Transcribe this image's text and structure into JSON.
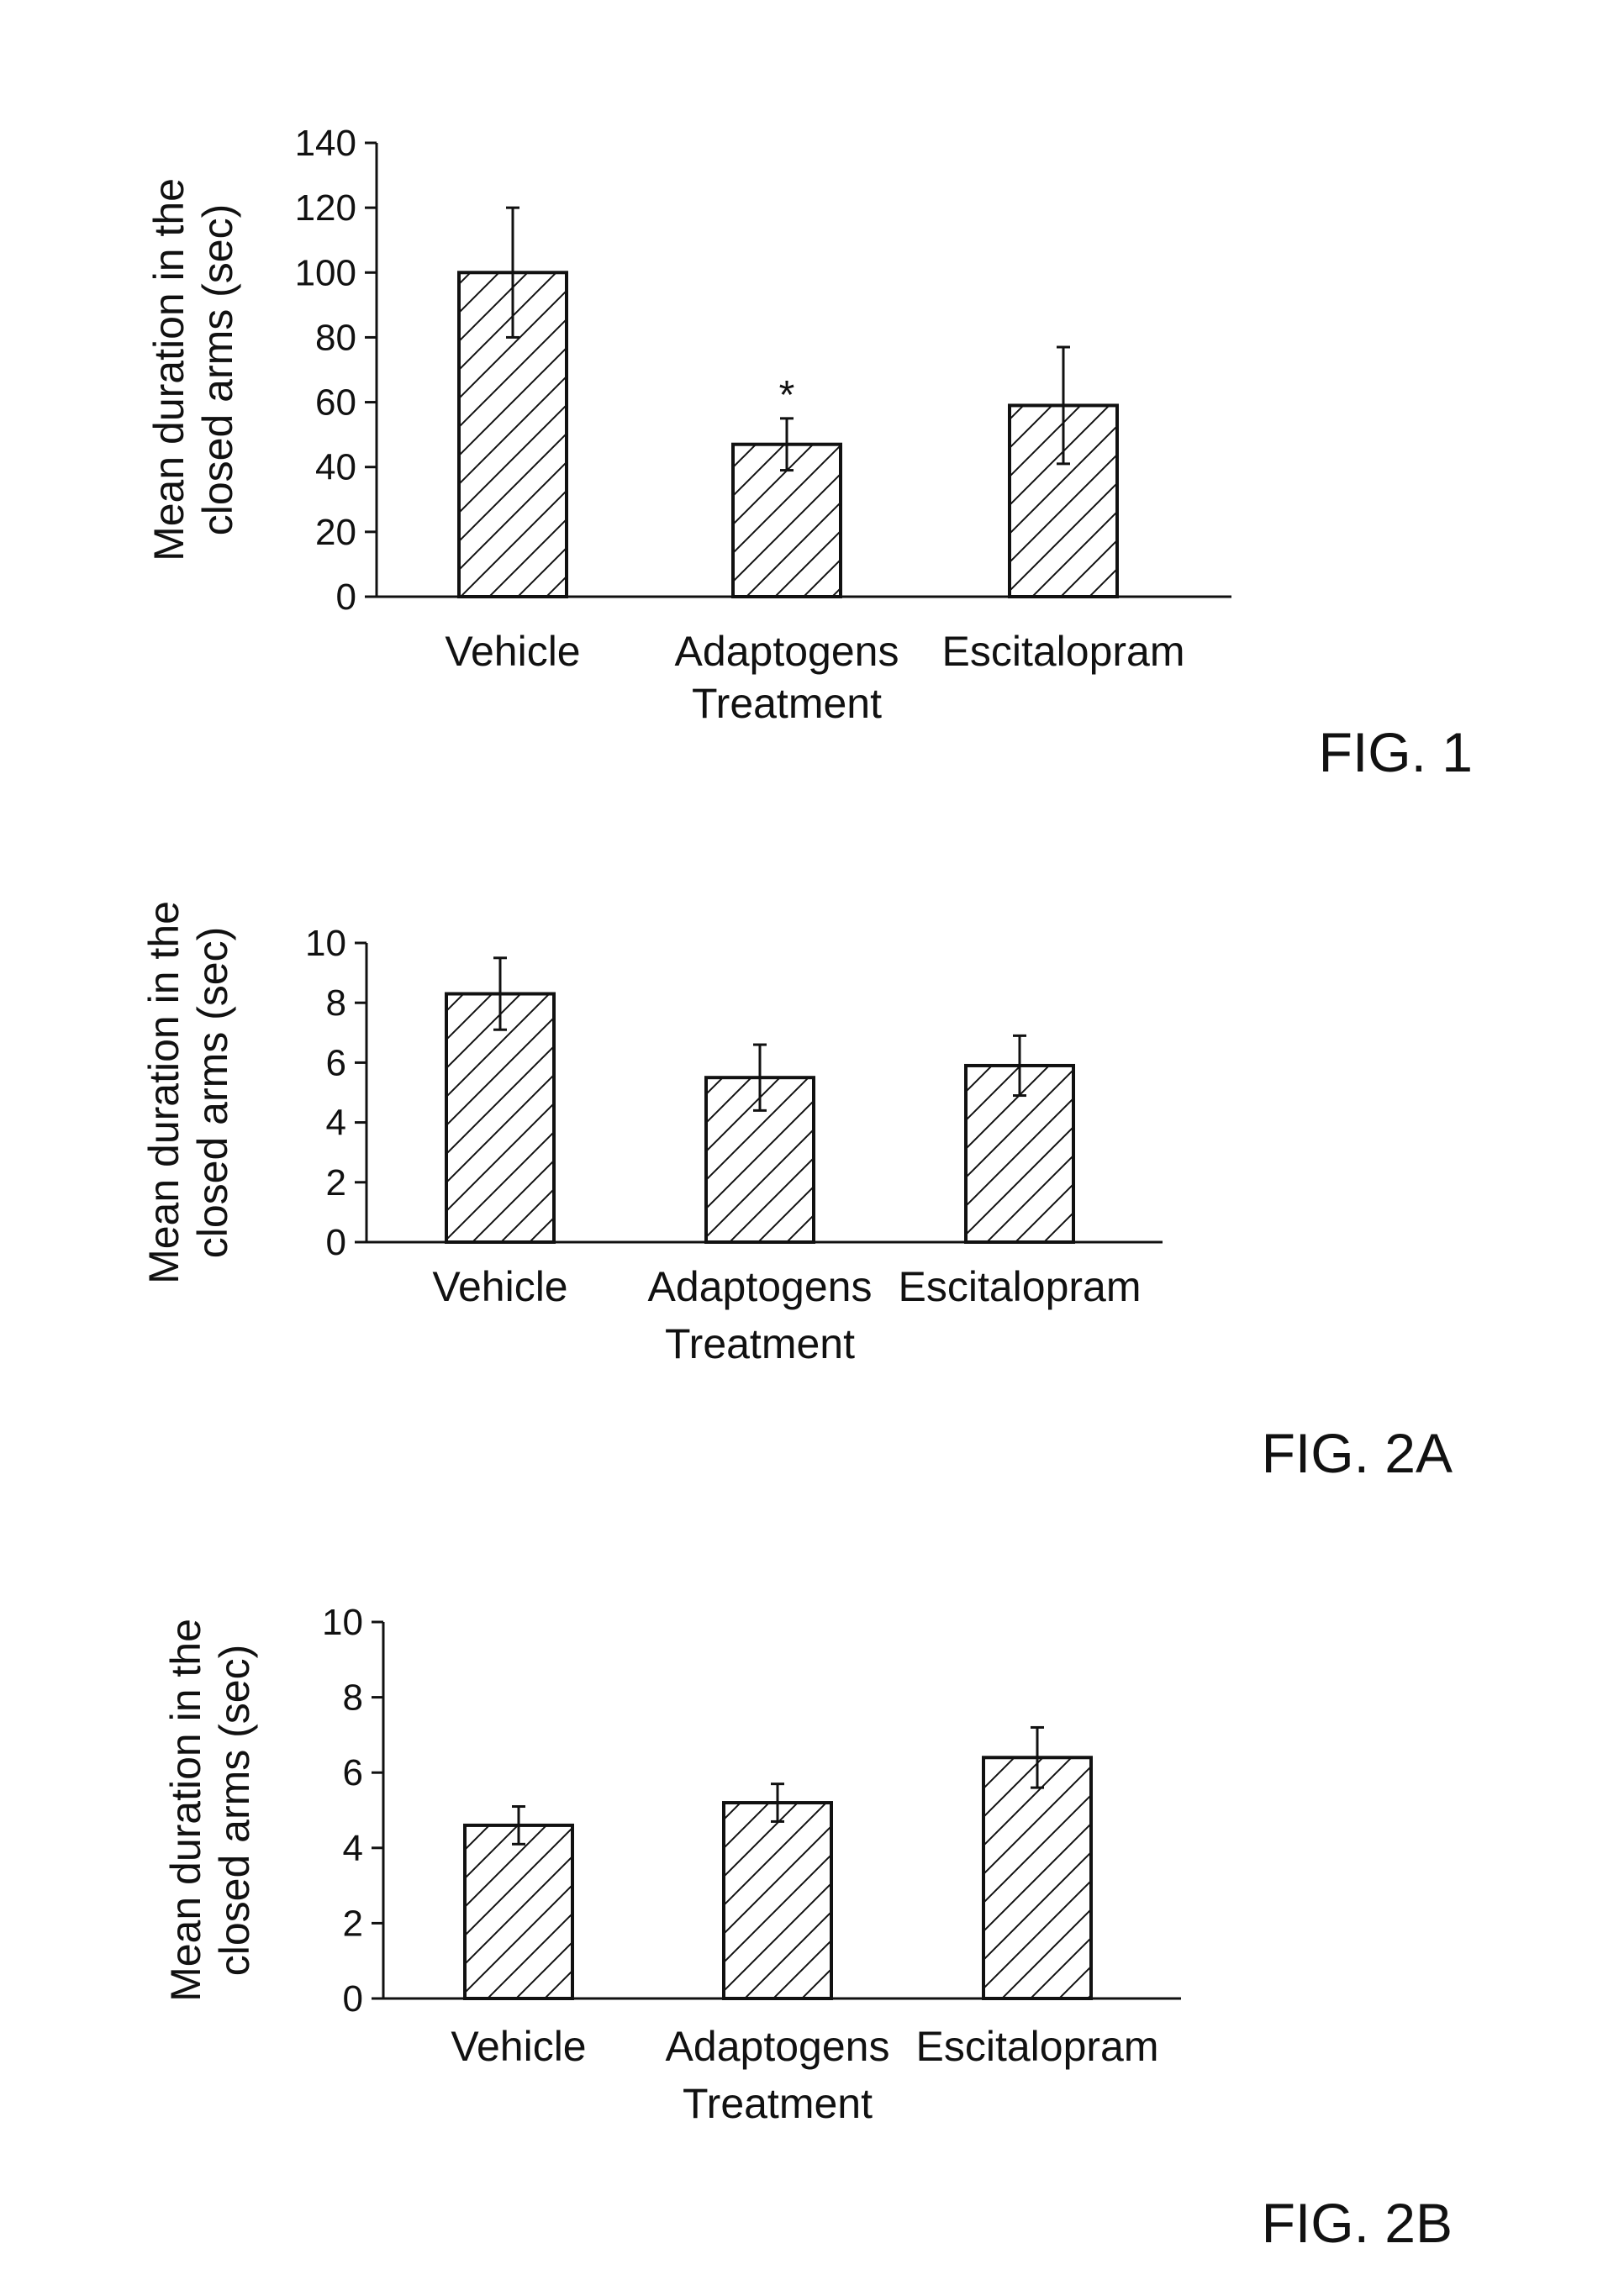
{
  "chart_data": [
    {
      "type": "bar",
      "title": "",
      "figure_label": "FIG. 1",
      "categories": [
        [
          "Vehicle"
        ],
        [
          "Adaptogens",
          "Treatment"
        ],
        [
          "Escitalopram"
        ]
      ],
      "values": [
        100,
        47,
        59
      ],
      "error": [
        20,
        8,
        18
      ],
      "annotations": [
        "",
        "*",
        ""
      ],
      "ylabel": [
        "Mean duration in the",
        "closed arms (sec)"
      ],
      "xlabel": "",
      "ylim": [
        0,
        140
      ],
      "yticks": [
        0,
        20,
        40,
        60,
        80,
        100,
        120,
        140
      ],
      "grid": false,
      "fill_pattern": "diagonal-hatch"
    },
    {
      "type": "bar",
      "title": "",
      "figure_label": "FIG. 2A",
      "categories": [
        [
          "Vehicle"
        ],
        [
          "Adaptogens",
          "Treatment"
        ],
        [
          "Escitalopram"
        ]
      ],
      "values": [
        8.3,
        5.5,
        5.9
      ],
      "error": [
        1.2,
        1.1,
        1.0
      ],
      "annotations": [
        "",
        "",
        ""
      ],
      "ylabel": [
        "Mean duration in the",
        "closed arms (sec)"
      ],
      "xlabel": "",
      "ylim": [
        0,
        10
      ],
      "yticks": [
        0,
        2,
        4,
        6,
        8,
        10
      ],
      "grid": false,
      "fill_pattern": "diagonal-hatch"
    },
    {
      "type": "bar",
      "title": "",
      "figure_label": "FIG. 2B",
      "categories": [
        [
          "Vehicle"
        ],
        [
          "Adaptogens",
          "Treatment"
        ],
        [
          "Escitalopram"
        ]
      ],
      "values": [
        4.6,
        5.2,
        6.4
      ],
      "error": [
        0.5,
        0.5,
        0.8
      ],
      "annotations": [
        "",
        "",
        ""
      ],
      "ylabel": [
        "Mean duration in the",
        "closed arms (sec)"
      ],
      "xlabel": "",
      "ylim": [
        0,
        10
      ],
      "yticks": [
        0,
        2,
        4,
        6,
        8,
        10
      ],
      "grid": false,
      "fill_pattern": "diagonal-hatch"
    }
  ]
}
